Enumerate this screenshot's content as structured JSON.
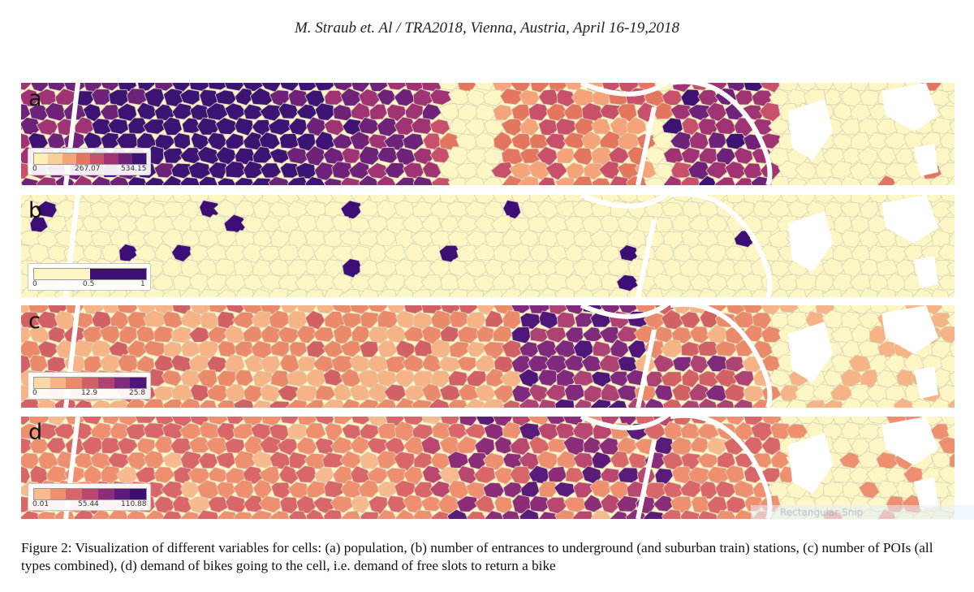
{
  "header": {
    "running_head": "M. Straub et. Al / TRA2018, Vienna, Austria, April 16-19,2018"
  },
  "figure": {
    "panels": [
      {
        "letter": "a",
        "legend_ticks": [
          "0",
          "267.07",
          "534.15"
        ],
        "legend_colors": [
          "#fcf0b8",
          "#f9cf98",
          "#f4a478",
          "#e47660",
          "#c8506a",
          "#9f3373",
          "#6e227a",
          "#3d1373"
        ]
      },
      {
        "letter": "b",
        "legend_ticks": [
          "0",
          "0.5",
          "1"
        ],
        "legend_colors": [
          "#fbf6c3",
          "#3d0e75"
        ]
      },
      {
        "letter": "c",
        "legend_ticks": [
          "0",
          "12.9",
          "25.8"
        ],
        "legend_colors": [
          "#fbd9a6",
          "#f6b486",
          "#ea8a6b",
          "#d26165",
          "#ad4273",
          "#7f2a7c",
          "#4f177a"
        ]
      },
      {
        "letter": "d",
        "legend_ticks": [
          "0.01",
          "55.44",
          "110.88"
        ],
        "legend_colors": [
          "#f7b98e",
          "#ee8f70",
          "#d9676a",
          "#b9476f",
          "#8c2d7a",
          "#5b1b7b",
          "#3a0f70"
        ]
      }
    ],
    "watermark": "Rectangular Snip"
  },
  "caption": {
    "text": "Figure 2: Visualization of different variables for cells: (a) population, (b) number of entrances to underground (and suburban train) stations, (c) number of POIs (all types combined), (d) demand of bikes going to the cell, i.e. demand of free slots to return a bike"
  }
}
